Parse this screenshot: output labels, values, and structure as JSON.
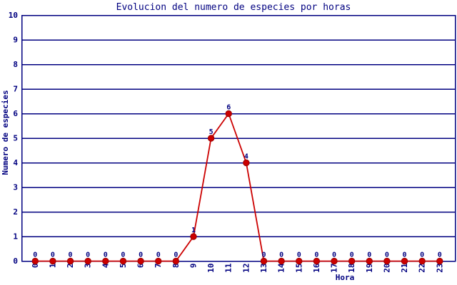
{
  "chart_data": {
    "type": "line",
    "title": "Evolucion del numero de especies por horas",
    "xlabel": "Hora",
    "ylabel": "Numero de especies",
    "x": [
      0,
      1,
      2,
      3,
      4,
      5,
      6,
      7,
      8,
      9,
      10,
      11,
      12,
      13,
      14,
      15,
      16,
      17,
      18,
      19,
      20,
      21,
      22,
      23
    ],
    "series": [
      {
        "name": "especies",
        "values": [
          0,
          0,
          0,
          0,
          0,
          0,
          0,
          0,
          0,
          1,
          5,
          6,
          4,
          0,
          0,
          0,
          0,
          0,
          0,
          0,
          0,
          0,
          0,
          0
        ]
      }
    ],
    "ylim": [
      0,
      10
    ],
    "ytick_step": 1,
    "yticks": [
      0,
      1,
      2,
      3,
      4,
      5,
      6,
      7,
      8,
      9,
      10
    ],
    "grid": "horizontal",
    "legend": "none",
    "point_labels_visible": true,
    "colors": {
      "background": "#ffffff",
      "axis": "#000080",
      "grid": "#000080",
      "text": "#000080",
      "line": "#cc0000",
      "point_fill": "#cc0000",
      "point_stroke": "#990000"
    }
  }
}
